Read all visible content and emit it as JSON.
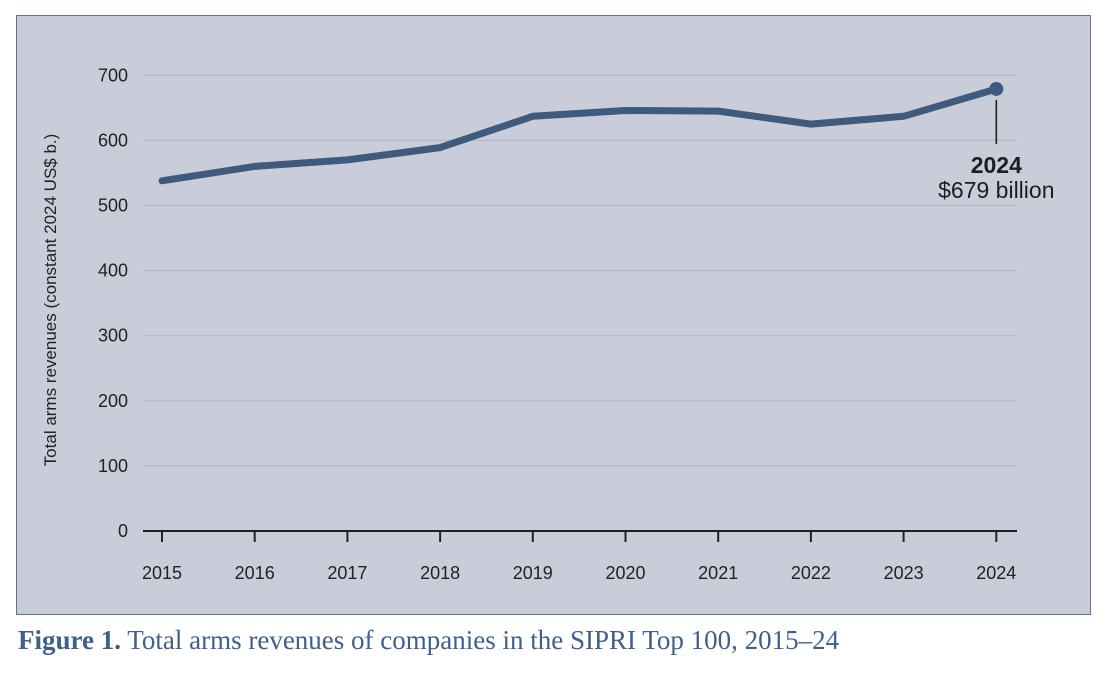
{
  "caption": {
    "label": "Figure 1.",
    "text": "Total arms revenues of companies in the SIPRI Top 100, 2015–24"
  },
  "colors": {
    "background": "#c9cdd9",
    "line": "#3e5a7e",
    "grid": "#b3b9c8",
    "caption": "#3f5f8c",
    "frame": "#5c7394"
  },
  "chart_data": {
    "type": "line",
    "title": "",
    "xlabel": "",
    "ylabel": "Total arms revenues (constant 2024 US$ b.)",
    "x": [
      "2015",
      "2016",
      "2017",
      "2018",
      "2019",
      "2020",
      "2021",
      "2022",
      "2023",
      "2024"
    ],
    "series": [
      {
        "values": [
          538,
          560,
          570,
          589,
          637,
          646,
          645,
          625,
          637,
          679
        ]
      }
    ],
    "ylim": [
      0,
      700
    ],
    "yticks": [
      "0",
      "100",
      "200",
      "300",
      "400",
      "500",
      "600",
      "700"
    ],
    "grid": true,
    "annotation": {
      "x": "2024",
      "year": "2024",
      "text": "$679 billion"
    }
  }
}
